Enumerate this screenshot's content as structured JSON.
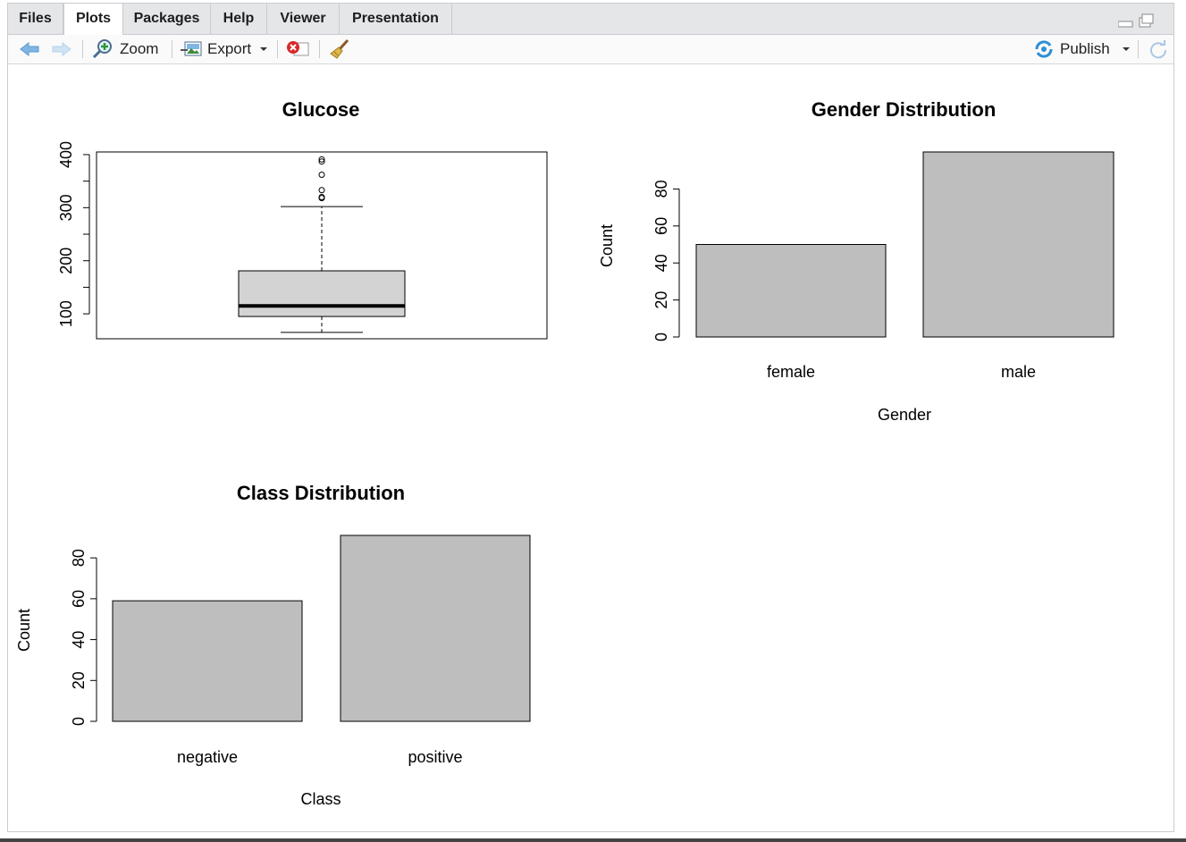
{
  "tabs": [
    {
      "label": "Files",
      "active": false
    },
    {
      "label": "Plots",
      "active": true
    },
    {
      "label": "Packages",
      "active": false
    },
    {
      "label": "Help",
      "active": false
    },
    {
      "label": "Viewer",
      "active": false
    },
    {
      "label": "Presentation",
      "active": false
    }
  ],
  "toolbar": {
    "zoom_label": "Zoom",
    "export_label": "Export",
    "publish_label": "Publish"
  },
  "icons": {
    "back": "arrow-left-icon",
    "forward": "arrow-right-icon",
    "zoom": "magnifier-icon",
    "export": "export-image-icon",
    "remove": "remove-plot-icon",
    "clear": "broom-icon",
    "publish": "publish-icon",
    "refresh": "refresh-icon"
  },
  "colors": {
    "bar_fill": "#bebebe",
    "box_fill": "#d3d3d3",
    "tab_bg": "#e4e6e8"
  },
  "chart_data": [
    {
      "type": "boxplot",
      "title": "Glucose",
      "ylim": [
        53,
        405
      ],
      "yticks": [
        "100",
        "200",
        "300",
        "400"
      ],
      "yticks_values": [
        100,
        200,
        300,
        400
      ],
      "whisker_low": 65,
      "q1": 95,
      "median": 115,
      "q3": 181,
      "whisker_high": 302,
      "outliers": [
        318,
        320,
        333,
        362,
        387,
        391
      ]
    },
    {
      "type": "bar",
      "title": "Gender Distribution",
      "categories": [
        "female",
        "male"
      ],
      "values": [
        50,
        100
      ],
      "xlabel": "Gender",
      "ylabel": "Count",
      "ylim": [
        0,
        100
      ],
      "yticks": [
        "0",
        "20",
        "40",
        "60",
        "80"
      ],
      "yticks_values": [
        0,
        20,
        40,
        60,
        80
      ]
    },
    {
      "type": "bar",
      "title": "Class Distribution",
      "categories": [
        "negative",
        "positive"
      ],
      "values": [
        59,
        91
      ],
      "xlabel": "Class",
      "ylabel": "Count",
      "ylim": [
        0,
        91
      ],
      "yticks": [
        "0",
        "20",
        "40",
        "60",
        "80"
      ],
      "yticks_values": [
        0,
        20,
        40,
        60,
        80
      ]
    }
  ]
}
